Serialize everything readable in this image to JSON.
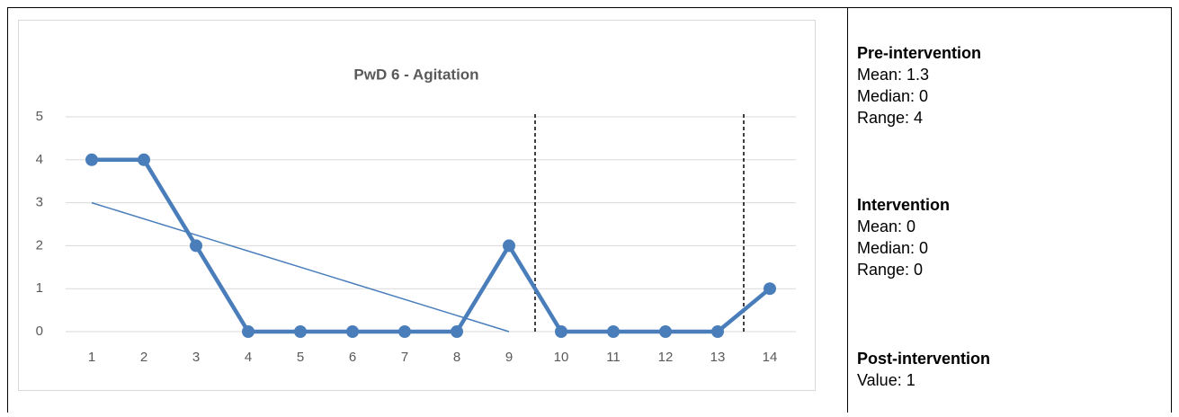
{
  "chart_data": {
    "type": "line",
    "title": "PwD 6 - Agitation",
    "x": [
      1,
      2,
      3,
      4,
      5,
      6,
      7,
      8,
      9,
      10,
      11,
      12,
      13,
      14
    ],
    "series": [
      {
        "name": "Agitation",
        "color": "#4a7ebb",
        "values": [
          4,
          4,
          2,
          0,
          0,
          0,
          0,
          0,
          2,
          0,
          0,
          0,
          0,
          1
        ]
      }
    ],
    "trendline": {
      "x": [
        1,
        9
      ],
      "values": [
        3,
        0
      ]
    },
    "phase_lines": [
      9.5,
      13.5
    ],
    "xlim": [
      0.5,
      14.5
    ],
    "xticks": [
      1,
      2,
      3,
      4,
      5,
      6,
      7,
      8,
      9,
      10,
      11,
      12,
      13,
      14
    ],
    "ylim": [
      0,
      5
    ],
    "yticks": [
      0,
      1,
      2,
      3,
      4,
      5
    ],
    "grid": true
  },
  "panel": [
    {
      "heading": "Pre-intervention",
      "lines": [
        "Mean: 1.3",
        "Median: 0",
        "Range: 4"
      ]
    },
    {
      "heading": "Intervention",
      "lines": [
        "Mean: 0",
        "Median: 0",
        "Range: 0"
      ]
    },
    {
      "heading": "Post-intervention",
      "lines": [
        "Value: 1"
      ]
    }
  ]
}
